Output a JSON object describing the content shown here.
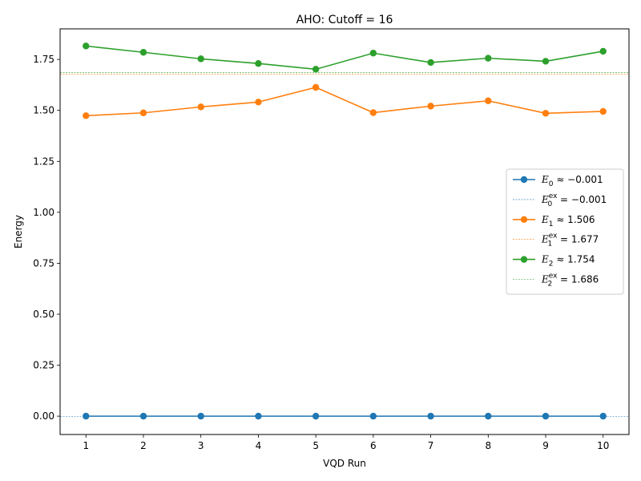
{
  "chart_data": {
    "type": "line",
    "title": "AHO: Cutoff = 16",
    "xlabel": "VQD Run",
    "ylabel": "Energy",
    "x": [
      1,
      2,
      3,
      4,
      5,
      6,
      7,
      8,
      9,
      10
    ],
    "xlim": [
      0.55,
      10.45
    ],
    "ylim": [
      -0.09,
      1.9
    ],
    "yticks": [
      "0.00",
      "0.25",
      "0.50",
      "0.75",
      "1.00",
      "1.25",
      "1.50",
      "1.75"
    ],
    "ytick_values": [
      0,
      0.25,
      0.5,
      0.75,
      1.0,
      1.25,
      1.5,
      1.75
    ],
    "xticks": [
      "1",
      "2",
      "3",
      "4",
      "5",
      "6",
      "7",
      "8",
      "9",
      "10"
    ],
    "grid": false,
    "legend_position": "center-right",
    "series": [
      {
        "symbol": "E",
        "sub": "0",
        "op": "≈",
        "value_label": "−0.001",
        "values": [
          0,
          0,
          0,
          0,
          0,
          0,
          0,
          0,
          0,
          0
        ],
        "color": "#1f77b4"
      },
      {
        "symbol": "E",
        "sub": "1",
        "op": "≈",
        "value_label": "1.506",
        "values": [
          1.474,
          1.488,
          1.517,
          1.541,
          1.613,
          1.489,
          1.521,
          1.547,
          1.486,
          1.495
        ],
        "color": "#ff7f0e"
      },
      {
        "symbol": "E",
        "sub": "2",
        "op": "≈",
        "value_label": "1.754",
        "values": [
          1.816,
          1.785,
          1.753,
          1.73,
          1.702,
          1.781,
          1.735,
          1.756,
          1.741,
          1.79
        ],
        "color": "#2ca02c"
      }
    ],
    "reference_lines": [
      {
        "symbol": "E",
        "sub": "0",
        "sup": "ex",
        "op": "=",
        "value_label": "−0.001",
        "value": -0.001,
        "color": "#1f77b4"
      },
      {
        "symbol": "E",
        "sub": "1",
        "sup": "ex",
        "op": "=",
        "value_label": "1.677",
        "value": 1.677,
        "color": "#ff7f0e"
      },
      {
        "symbol": "E",
        "sub": "2",
        "sup": "ex",
        "op": "=",
        "value_label": "1.686",
        "value": 1.686,
        "color": "#2ca02c"
      }
    ]
  }
}
